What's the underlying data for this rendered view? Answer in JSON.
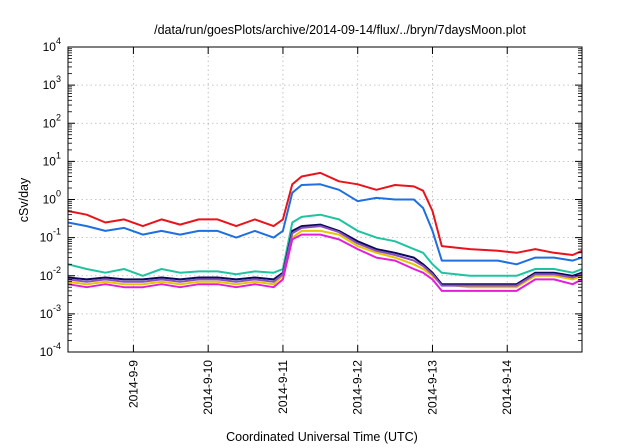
{
  "chart_data": {
    "type": "line",
    "title": "/data/run/goesPlots/archive/2014-09-14/flux/../bryn/7daysMoon.plot",
    "xlabel": "Coordinated Universal Time (UTC)",
    "ylabel": "cSv/day",
    "yscale": "log",
    "ylim": [
      0.0001,
      10000
    ],
    "xlim": [
      "2014-09-08T03:00Z",
      "2014-09-15T00:00Z"
    ],
    "grid": true,
    "y_ticks": [
      {
        "value": 0.0001,
        "base": "10",
        "exp": "-4"
      },
      {
        "value": 0.001,
        "base": "10",
        "exp": "-3"
      },
      {
        "value": 0.01,
        "base": "10",
        "exp": "-2"
      },
      {
        "value": 0.1,
        "base": "10",
        "exp": "-1"
      },
      {
        "value": 1,
        "base": "10",
        "exp": "0"
      },
      {
        "value": 10,
        "base": "10",
        "exp": "1"
      },
      {
        "value": 100,
        "base": "10",
        "exp": "2"
      },
      {
        "value": 1000,
        "base": "10",
        "exp": "3"
      },
      {
        "value": 10000,
        "base": "10",
        "exp": "4"
      }
    ],
    "x_ticks": [
      {
        "label": "2014-9-9",
        "value": "2014-09-09T00:00Z"
      },
      {
        "label": "2014-9-10",
        "value": "2014-09-10T00:00Z"
      },
      {
        "label": "2014-9-11",
        "value": "2014-09-11T00:00Z"
      },
      {
        "label": "2014-9-12",
        "value": "2014-09-12T00:00Z"
      },
      {
        "label": "2014-9-13",
        "value": "2014-09-13T00:00Z"
      },
      {
        "label": "2014-9-14",
        "value": "2014-09-14T00:00Z"
      }
    ],
    "x": [
      "2014-09-08T03:00Z",
      "2014-09-08T09:00Z",
      "2014-09-08T15:00Z",
      "2014-09-08T21:00Z",
      "2014-09-09T03:00Z",
      "2014-09-09T09:00Z",
      "2014-09-09T15:00Z",
      "2014-09-09T21:00Z",
      "2014-09-10T03:00Z",
      "2014-09-10T09:00Z",
      "2014-09-10T15:00Z",
      "2014-09-10T21:00Z",
      "2014-09-11T00:00Z",
      "2014-09-11T03:00Z",
      "2014-09-11T06:00Z",
      "2014-09-11T12:00Z",
      "2014-09-11T18:00Z",
      "2014-09-12T00:00Z",
      "2014-09-12T06:00Z",
      "2014-09-12T12:00Z",
      "2014-09-12T18:00Z",
      "2014-09-12T21:00Z",
      "2014-09-13T00:00Z",
      "2014-09-13T03:00Z",
      "2014-09-13T12:00Z",
      "2014-09-13T21:00Z",
      "2014-09-14T03:00Z",
      "2014-09-14T09:00Z",
      "2014-09-14T15:00Z",
      "2014-09-14T21:00Z",
      "2014-09-15T00:00Z"
    ],
    "series": [
      {
        "color": "#e8141c",
        "values": [
          0.5,
          0.4,
          0.25,
          0.3,
          0.2,
          0.3,
          0.22,
          0.3,
          0.3,
          0.2,
          0.3,
          0.2,
          0.3,
          2.5,
          4.0,
          5.0,
          3.0,
          2.5,
          1.8,
          2.4,
          2.2,
          1.7,
          0.5,
          0.06,
          0.05,
          0.045,
          0.04,
          0.05,
          0.04,
          0.035,
          0.045
        ]
      },
      {
        "color": "#1f6fe0",
        "values": [
          0.25,
          0.2,
          0.15,
          0.18,
          0.12,
          0.15,
          0.12,
          0.15,
          0.15,
          0.1,
          0.15,
          0.1,
          0.15,
          1.5,
          2.4,
          2.5,
          1.8,
          0.9,
          1.1,
          1.0,
          1.0,
          0.6,
          0.15,
          0.025,
          0.025,
          0.025,
          0.02,
          0.03,
          0.03,
          0.025,
          0.03
        ]
      },
      {
        "color": "#20c3a0",
        "values": [
          0.02,
          0.015,
          0.012,
          0.015,
          0.01,
          0.015,
          0.012,
          0.013,
          0.013,
          0.011,
          0.013,
          0.012,
          0.015,
          0.25,
          0.35,
          0.4,
          0.3,
          0.15,
          0.1,
          0.08,
          0.05,
          0.04,
          0.02,
          0.012,
          0.01,
          0.01,
          0.01,
          0.015,
          0.015,
          0.012,
          0.015
        ]
      },
      {
        "color": "#e6c600",
        "values": [
          0.007,
          0.006,
          0.007,
          0.006,
          0.006,
          0.007,
          0.006,
          0.007,
          0.007,
          0.006,
          0.007,
          0.006,
          0.01,
          0.1,
          0.15,
          0.15,
          0.12,
          0.06,
          0.04,
          0.03,
          0.02,
          0.015,
          0.01,
          0.006,
          0.005,
          0.005,
          0.005,
          0.01,
          0.01,
          0.008,
          0.01
        ]
      },
      {
        "color": "#0a0a5a",
        "values": [
          0.009,
          0.008,
          0.009,
          0.008,
          0.008,
          0.009,
          0.008,
          0.009,
          0.009,
          0.008,
          0.009,
          0.008,
          0.012,
          0.15,
          0.2,
          0.22,
          0.15,
          0.08,
          0.05,
          0.04,
          0.03,
          0.02,
          0.012,
          0.006,
          0.006,
          0.006,
          0.006,
          0.012,
          0.012,
          0.01,
          0.012
        ]
      },
      {
        "color": "#8c4fc0",
        "values": [
          0.008,
          0.007,
          0.008,
          0.007,
          0.007,
          0.008,
          0.007,
          0.008,
          0.008,
          0.007,
          0.008,
          0.007,
          0.011,
          0.13,
          0.18,
          0.2,
          0.14,
          0.07,
          0.045,
          0.035,
          0.025,
          0.018,
          0.011,
          0.0055,
          0.0055,
          0.0055,
          0.0055,
          0.011,
          0.011,
          0.009,
          0.011
        ]
      },
      {
        "color": "#e020d8",
        "values": [
          0.006,
          0.005,
          0.006,
          0.005,
          0.005,
          0.006,
          0.005,
          0.006,
          0.006,
          0.005,
          0.006,
          0.005,
          0.008,
          0.09,
          0.12,
          0.12,
          0.09,
          0.05,
          0.03,
          0.025,
          0.015,
          0.012,
          0.008,
          0.004,
          0.004,
          0.004,
          0.004,
          0.008,
          0.008,
          0.006,
          0.008
        ]
      }
    ]
  }
}
